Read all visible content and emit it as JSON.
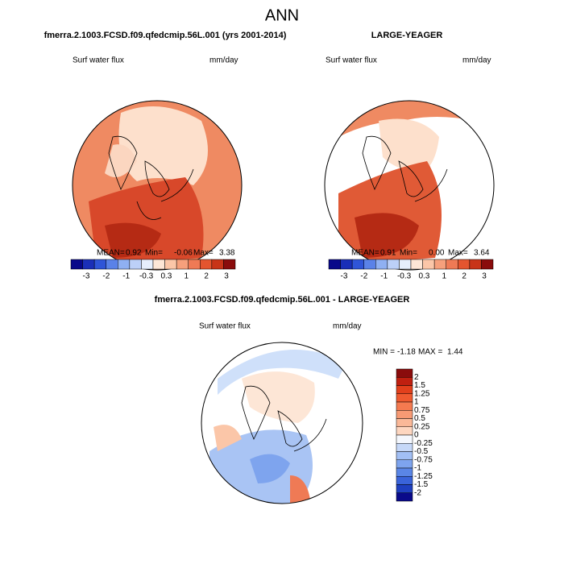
{
  "title": "ANN",
  "panels": [
    {
      "title": "fmerra.2.1003.FCSD.f09.qfedcmip.56L.001 (yrs 2001-2014)",
      "variable": "Surf water flux",
      "units": "mm/day",
      "stats": [
        {
          "label": "MEAN=",
          "value": "0.92"
        },
        {
          "label": "Min=",
          "value": "-0.06"
        },
        {
          "label": "Max=",
          "value": "3.38"
        }
      ]
    },
    {
      "title": "LARGE-YEAGER",
      "variable": "Surf water flux",
      "units": "mm/day",
      "stats": [
        {
          "label": "MEAN=",
          "value": "0.91"
        },
        {
          "label": "Min=",
          "value": "0.00"
        },
        {
          "label": "Max=",
          "value": "3.64"
        }
      ]
    },
    {
      "title": "fmerra.2.1003.FCSD.f09.qfedcmip.56L.001 - LARGE-YEAGER",
      "variable": "Surf water flux",
      "units": "mm/day",
      "stats": [
        {
          "label": "MIN =",
          "value": "-1.18"
        },
        {
          "label": "MAX =",
          "value": "1.44"
        }
      ]
    }
  ],
  "colorbar": {
    "labels": [
      -3,
      -2,
      -1,
      -0.3,
      0.3,
      1,
      2,
      3
    ],
    "colors": [
      "#08088a",
      "#1a2fb8",
      "#2f55d8",
      "#5a82e8",
      "#8fb0f2",
      "#bcd0f8",
      "#e6eefc",
      "#fde6d6",
      "#fbc6a8",
      "#f6a07c",
      "#ef7a55",
      "#e4552f",
      "#c83418",
      "#8a0c0c"
    ]
  },
  "diff_colorbar": {
    "labels": [
      2,
      1.5,
      1.25,
      1,
      0.75,
      0.5,
      0.25,
      0,
      -0.25,
      -0.5,
      -0.75,
      -1,
      -1.25,
      -1.5,
      -2
    ],
    "colors": [
      "#8a0c0c",
      "#c02010",
      "#e2401c",
      "#ef5a30",
      "#f47a50",
      "#f79a74",
      "#fab898",
      "#fdd6c0",
      "#f4f7fd",
      "#c6d8f8",
      "#a2bff4",
      "#7ea4ee",
      "#5a86e6",
      "#3a64da",
      "#1f40c0",
      "#0a0a8a"
    ]
  }
}
